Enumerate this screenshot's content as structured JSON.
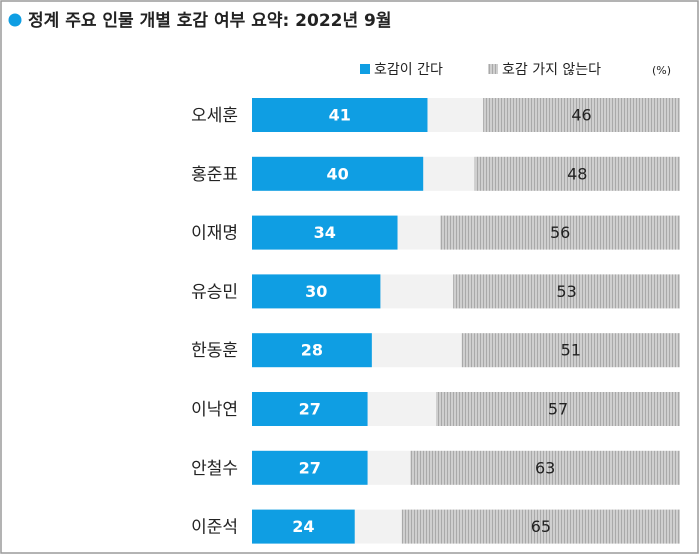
{
  "chart_data": {
    "type": "diverging-bar",
    "title": "정계 주요 인물 개별 호감 여부 요약: 2022년 9월",
    "unit": "(%)",
    "categories": [
      "오세훈",
      "홍준표",
      "이재명",
      "유승민",
      "한동훈",
      "이낙연",
      "안철수",
      "이준석"
    ],
    "series": [
      {
        "name": "호감이 간다",
        "color": "#0f9ee3",
        "values": [
          41,
          40,
          34,
          30,
          28,
          27,
          27,
          24
        ]
      },
      {
        "name": "호감 가지 않는다",
        "color": "#cfcfcf",
        "values": [
          46,
          48,
          56,
          53,
          51,
          57,
          63,
          65
        ]
      }
    ],
    "xlim": [
      0,
      100
    ]
  }
}
